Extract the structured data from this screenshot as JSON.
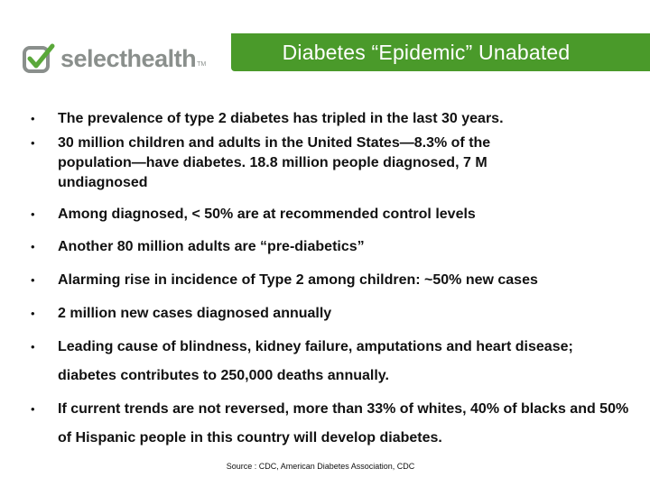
{
  "logo": {
    "brand_text": "selecthealth",
    "trademark": "TM",
    "icon": "checkmark-square-icon",
    "brand_color": "#8a8f8c",
    "check_color": "#5aa83a"
  },
  "title": {
    "text": "Diabetes “Epidemic” Unabated",
    "background_color": "#4a9a2a"
  },
  "bullet_glyph": "•",
  "bullets": [
    "The prevalence of type 2 diabetes has tripled in the last 30 years.",
    "30 million children and adults in the United States—8.3% of the population—have diabetes. 18.8 million people diagnosed, 7 M undiagnosed",
    "Among diagnosed, < 50% are at recommended control levels",
    "Another 80 million adults are “pre-diabetics”",
    "Alarming rise in incidence of Type 2 among children: ~50% new cases",
    "2 million new cases diagnosed annually",
    "Leading cause of blindness, kidney failure, amputations and heart disease; diabetes contributes to 250,000 deaths annually.",
    "If current trends are not reversed, more than 33% of whites, 40% of blacks and 50% of Hispanic people in this country will develop diabetes."
  ],
  "source": "Source : CDC, American Diabetes Association, CDC"
}
